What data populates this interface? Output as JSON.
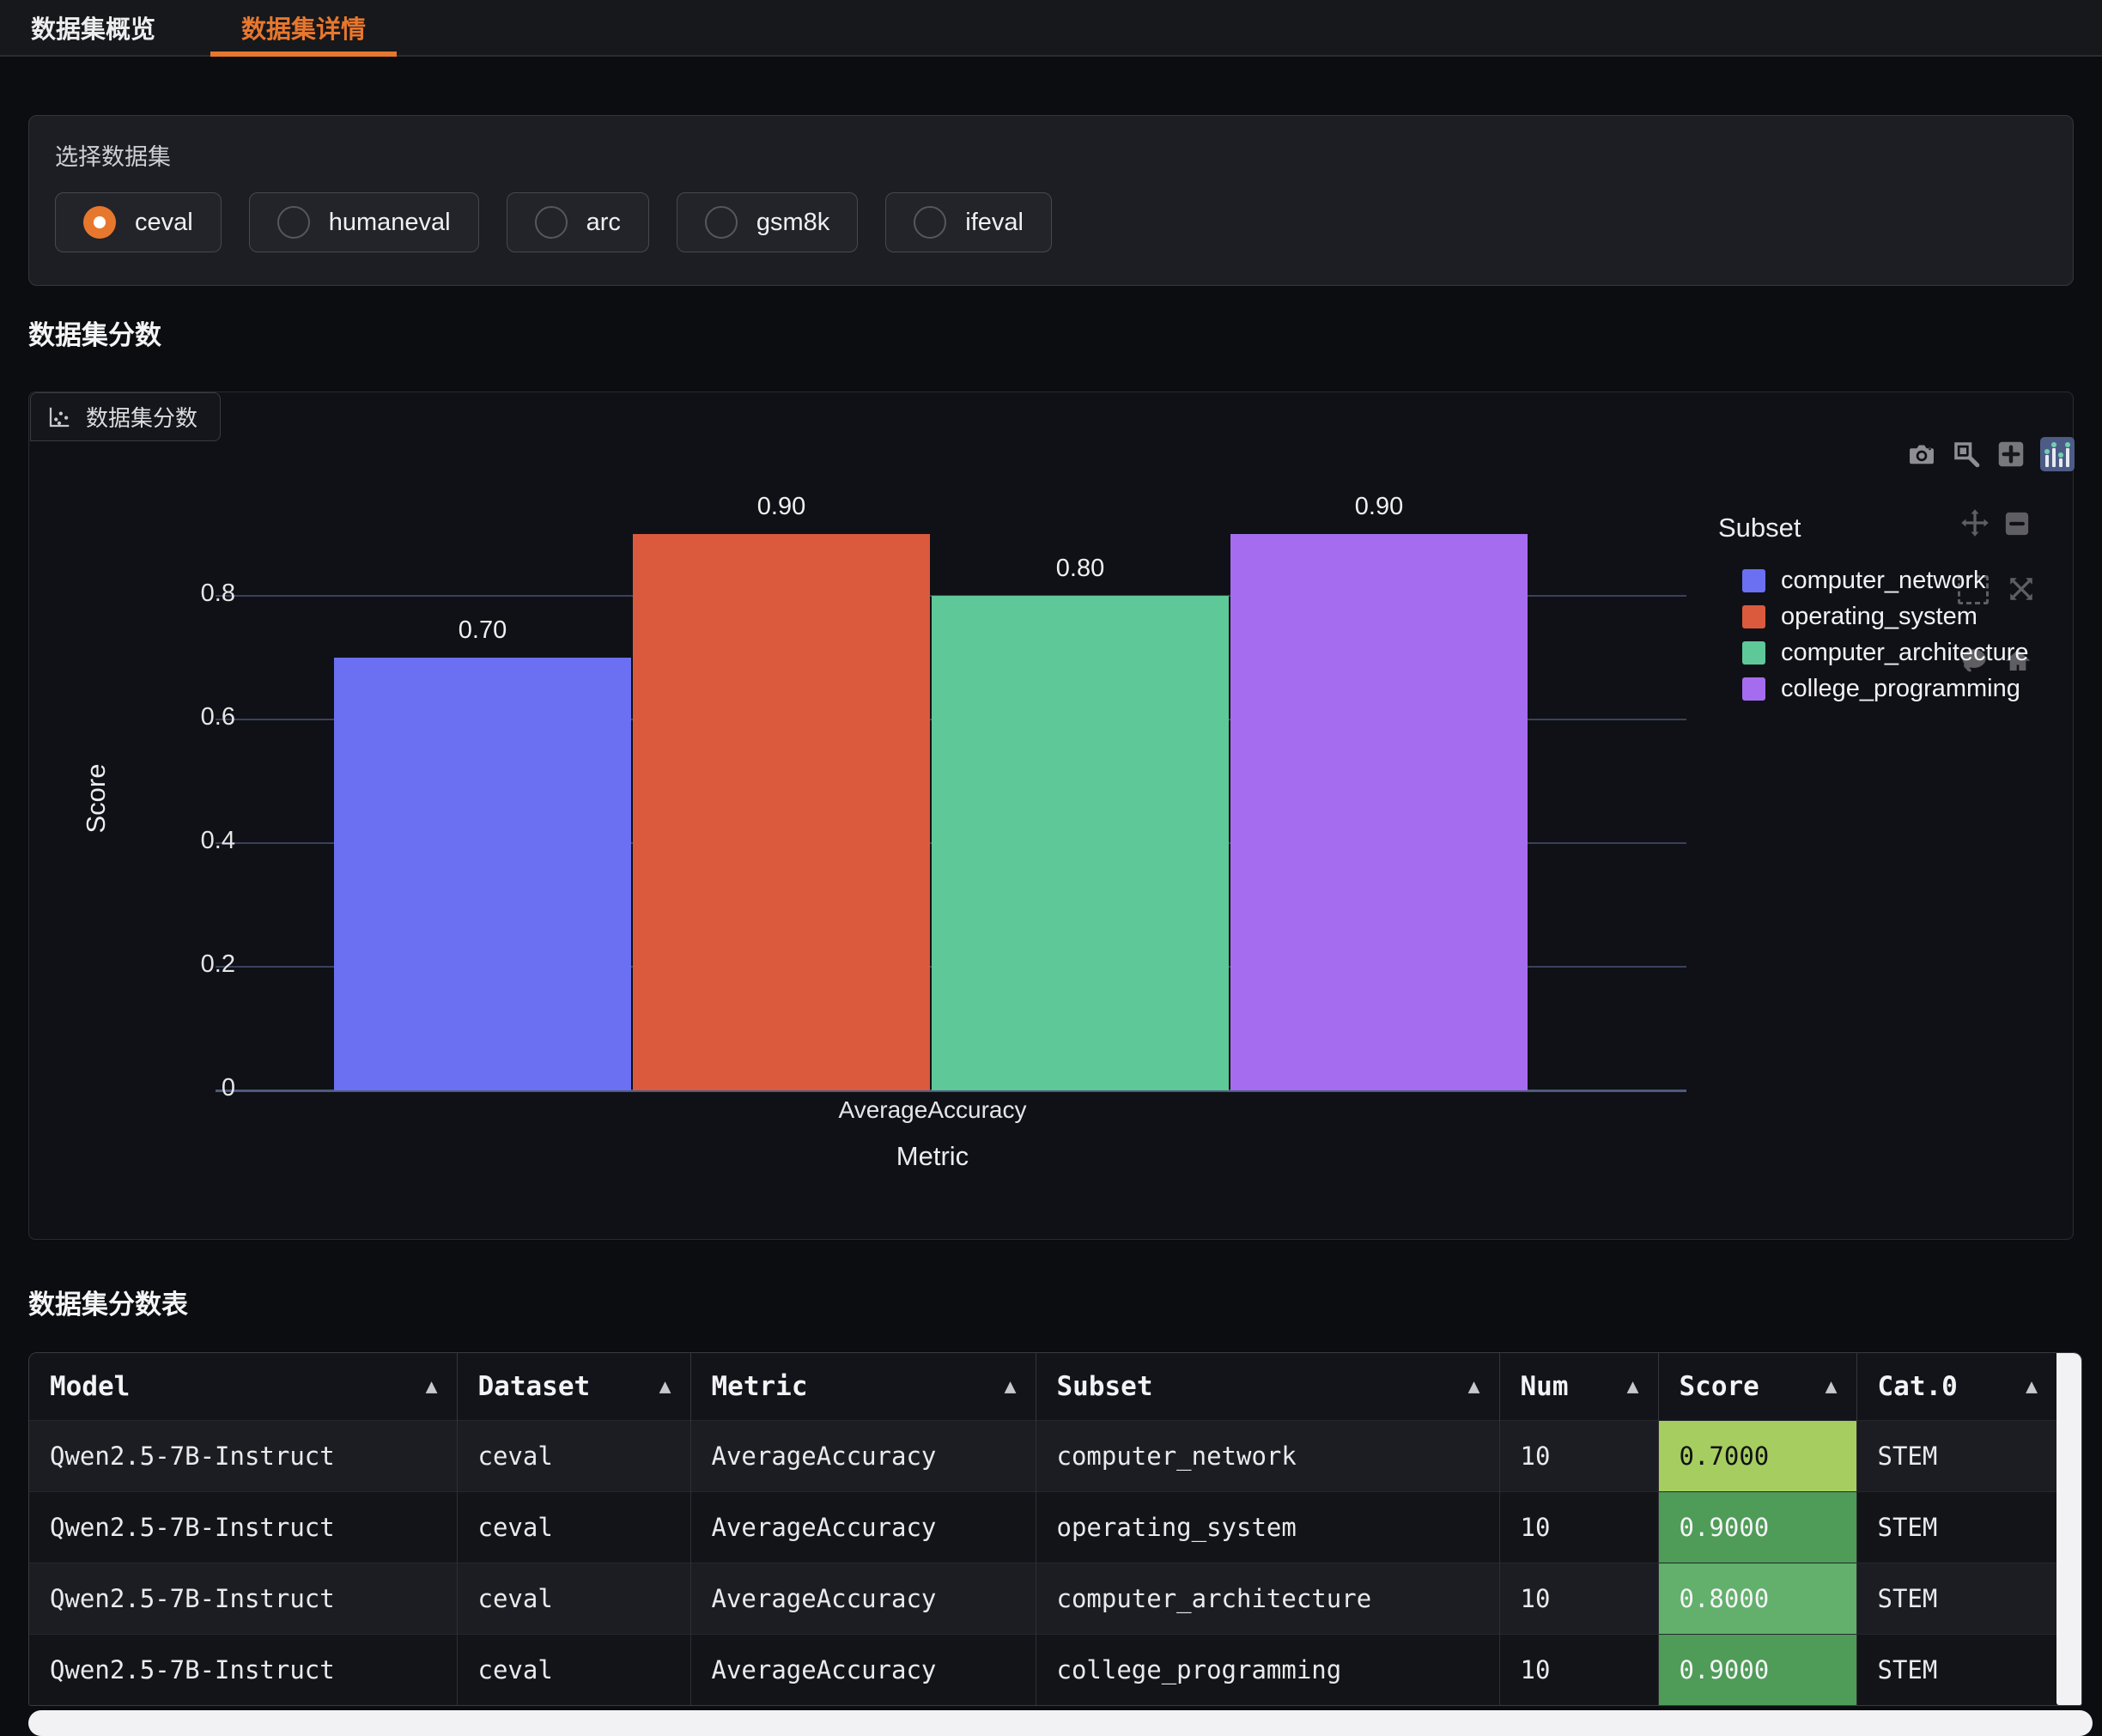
{
  "tabs": [
    {
      "label": "数据集概览",
      "active": false
    },
    {
      "label": "数据集详情",
      "active": true
    }
  ],
  "dataset_selector": {
    "label": "选择数据集",
    "options": [
      {
        "label": "ceval",
        "selected": true
      },
      {
        "label": "humaneval",
        "selected": false
      },
      {
        "label": "arc",
        "selected": false
      },
      {
        "label": "gsm8k",
        "selected": false
      },
      {
        "label": "ifeval",
        "selected": false
      }
    ]
  },
  "score_section": {
    "heading": "数据集分数",
    "chart_chip_label": "数据集分数"
  },
  "chart_data": {
    "type": "bar",
    "title": "数据集分数",
    "categories": [
      "AverageAccuracy"
    ],
    "series": [
      {
        "name": "computer_network",
        "values": [
          0.7
        ],
        "bar_label": "0.70",
        "color": "#6B70F2"
      },
      {
        "name": "operating_system",
        "values": [
          0.9
        ],
        "bar_label": "0.90",
        "color": "#DB5A3D"
      },
      {
        "name": "computer_architecture",
        "values": [
          0.8
        ],
        "bar_label": "0.80",
        "color": "#5EC898"
      },
      {
        "name": "college_programming",
        "values": [
          0.9
        ],
        "bar_label": "0.90",
        "color": "#A56CEF"
      }
    ],
    "xlabel": "Metric",
    "ylabel": "Score",
    "ylim": [
      0,
      1
    ],
    "yticks": [
      0,
      0.2,
      0.4,
      0.6,
      0.8
    ],
    "legend_title": "Subset",
    "legend_position": "right",
    "grid": true
  },
  "chart_toolbar": {
    "icons": [
      "camera-icon",
      "zoom-icon",
      "zoom-in-icon",
      "plotly-logo-icon"
    ],
    "ghost_icons": [
      "pan-icon",
      "zoom-out-icon",
      "box-select-icon",
      "autoscale-icon",
      "lasso-icon",
      "home-icon"
    ]
  },
  "table_section": {
    "heading": "数据集分数表",
    "sort_arrow": "▲",
    "columns": [
      "Model",
      "Dataset",
      "Metric",
      "Subset",
      "Num",
      "Score",
      "Cat.0"
    ],
    "rows": [
      {
        "model": "Qwen2.5-7B-Instruct",
        "dataset": "ceval",
        "metric": "AverageAccuracy",
        "subset": "computer_network",
        "num": "10",
        "score": "0.7000",
        "score_bg": "#A6CD60",
        "score_text": "#101113",
        "cat0": "STEM"
      },
      {
        "model": "Qwen2.5-7B-Instruct",
        "dataset": "ceval",
        "metric": "AverageAccuracy",
        "subset": "operating_system",
        "num": "10",
        "score": "0.9000",
        "score_bg": "#4E9C57",
        "score_text": "#F4F4F6",
        "cat0": "STEM"
      },
      {
        "model": "Qwen2.5-7B-Instruct",
        "dataset": "ceval",
        "metric": "AverageAccuracy",
        "subset": "computer_architecture",
        "num": "10",
        "score": "0.8000",
        "score_bg": "#62B06C",
        "score_text": "#F4F4F6",
        "cat0": "STEM"
      },
      {
        "model": "Qwen2.5-7B-Instruct",
        "dataset": "ceval",
        "metric": "AverageAccuracy",
        "subset": "college_programming",
        "num": "10",
        "score": "0.9000",
        "score_bg": "#4E9C57",
        "score_text": "#F4F4F6",
        "cat0": "STEM"
      }
    ]
  },
  "colors": {
    "accent_orange": "#E8772E",
    "grid_line": "#39415C",
    "axis_line": "#4E5A80",
    "scrollbar": "#F2F2F4"
  }
}
